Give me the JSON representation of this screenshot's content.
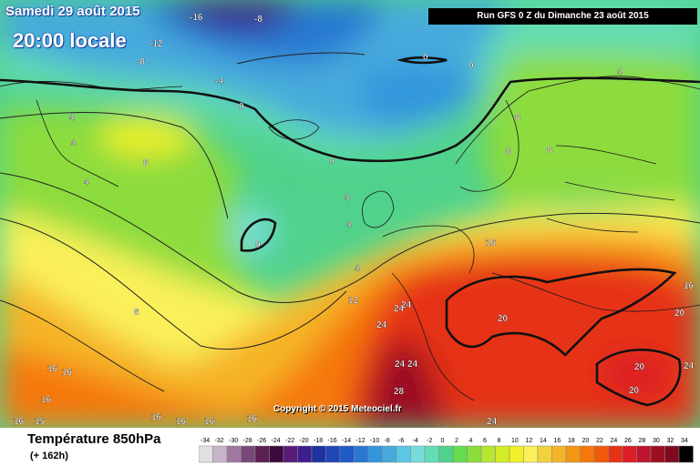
{
  "header": {
    "date": "Samedi 29 août 2015",
    "time": "20:00 locale",
    "run": "Run GFS 0 Z du Dimanche 23 août 2015"
  },
  "footer": {
    "copyright": "Copyright © 2015 Meteociel.fr",
    "variable": "Température 850hPa",
    "lead": "(+ 162h)"
  },
  "map_labels": [
    "-8",
    "-16",
    "-8",
    "-12",
    "-8",
    "-4",
    "0",
    "0",
    "0",
    "0",
    "4",
    "4",
    "4",
    "4",
    "4",
    "8",
    "8",
    "8",
    "8",
    "4",
    "0",
    "4",
    "8",
    "12",
    "16",
    "16",
    "16",
    "16",
    "16",
    "16",
    "15",
    "16",
    "16",
    "20",
    "20",
    "20",
    "20",
    "24",
    "24",
    "24",
    "24",
    "24",
    "24",
    "28",
    "24",
    "16",
    "16"
  ],
  "scale": {
    "ticks": [
      "-34",
      "-32",
      "-30",
      "-28",
      "-26",
      "-24",
      "-22",
      "-20",
      "-18",
      "-16",
      "-14",
      "-12",
      "-10",
      "-8",
      "-6",
      "-4",
      "-2",
      "0",
      "2",
      "4",
      "6",
      "8",
      "10",
      "12",
      "14",
      "16",
      "18",
      "20",
      "22",
      "24",
      "26",
      "28",
      "30",
      "32",
      "34"
    ],
    "colors": [
      "#e0e0e0",
      "#c8b4c8",
      "#a078a0",
      "#784878",
      "#5a2050",
      "#3c0a3c",
      "#5a1a78",
      "#3c1e8c",
      "#1e32a0",
      "#1e46b4",
      "#1e5ac8",
      "#2878d2",
      "#3296dc",
      "#46aadc",
      "#5ac8e6",
      "#78dcdc",
      "#64dcb4",
      "#50d28c",
      "#64dc50",
      "#8cdc3c",
      "#b4e632",
      "#d2ec28",
      "#f0f028",
      "#faf05a",
      "#f0d23c",
      "#f5b428",
      "#f59614",
      "#f5780a",
      "#f05a0a",
      "#e63214",
      "#dc1e28",
      "#be142d",
      "#9b0f23",
      "#7d0a1e",
      "#000000"
    ]
  }
}
